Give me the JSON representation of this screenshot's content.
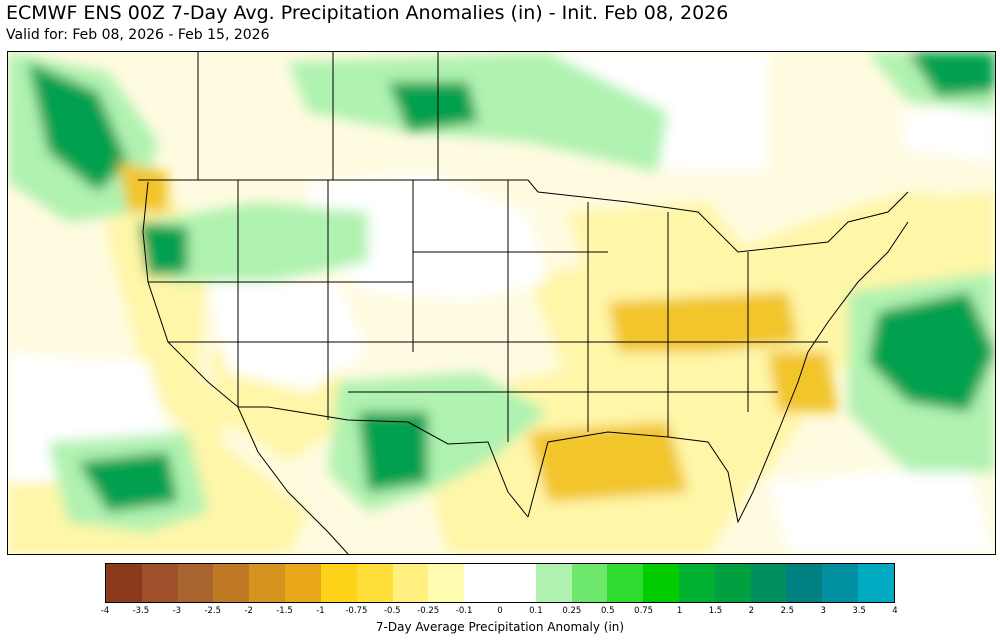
{
  "title": "ECMWF ENS 00Z 7-Day Avg. Precipitation Anomalies (in) - Init. Feb 08, 2026",
  "subtitle": "Valid for: Feb 08, 2026 - Feb 15, 2026",
  "colorbar": {
    "label": "7-Day Average Precipitation Anomaly (in)",
    "ticks": [
      "-4",
      "-3.5",
      "-3",
      "-2.5",
      "-2",
      "-1.5",
      "-1",
      "-0.75",
      "-0.5",
      "-0.25",
      "-0.1",
      "0",
      "0.1",
      "0.25",
      "0.5",
      "0.75",
      "1",
      "1.5",
      "2",
      "2.5",
      "3",
      "3.5",
      "4"
    ],
    "colors": [
      "#8c3a1c",
      "#a0502a",
      "#a8652f",
      "#c07a25",
      "#d59420",
      "#e8a81a",
      "#ffd21a",
      "#ffe03a",
      "#fff080",
      "#fffcb0",
      "#ffffff",
      "#ffffff",
      "#b0f2b0",
      "#6de86d",
      "#30dc30",
      "#00cc00",
      "#00b030",
      "#00a040",
      "#009060",
      "#008080",
      "#0090a0",
      "#00aac0"
    ]
  },
  "map_colors": {
    "ocean_base": "#fffbe0",
    "dry_light": "#fff6a8",
    "dry_mid": "#ffe560",
    "dry_strong": "#f2c52c",
    "neutral": "#ffffff",
    "wet_light": "#b0f2b0",
    "wet_mid": "#6de86d",
    "wet_strong": "#1ccc2c",
    "wet_core": "#00a050",
    "border_color": "#000000"
  }
}
